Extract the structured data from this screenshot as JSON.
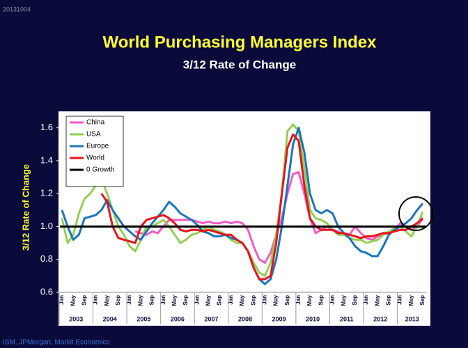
{
  "chart_data": {
    "type": "line",
    "stamp": "20131004",
    "title": "World Purchasing Managers Index",
    "subtitle": "3/12 Rate of Change",
    "y_label": "3/12 Rate of Change",
    "source": "ISM, JPMorgan, Markit Economics",
    "categories": [
      "Jan",
      null,
      "May",
      null,
      "Sep",
      null,
      "Jan",
      null,
      "May",
      null,
      "Sep",
      null,
      "Jan",
      null,
      "May",
      null,
      "Sep",
      null,
      "Jan",
      null,
      "May",
      null,
      "Sep",
      null,
      "Jan",
      null,
      "May",
      null,
      "Sep",
      null,
      "Jan",
      null,
      "May",
      null,
      "Sep",
      null,
      "Jan",
      null,
      "May",
      null,
      "Sep",
      null,
      "Jan",
      null,
      "May",
      null,
      "Sep",
      null,
      "Jan",
      null,
      "May",
      null,
      "Sep",
      null,
      "Jan",
      null,
      "May",
      null,
      "Sep",
      null,
      "Jan",
      null,
      "May",
      null,
      "Sep"
    ],
    "year_labels": [
      "2003",
      "2004",
      "2005",
      "2006",
      "2007",
      "2008",
      "2009",
      "2010",
      "2011",
      "2012",
      "2013"
    ],
    "ylim": [
      0.6,
      1.7
    ],
    "yticks": [
      0.6,
      0.8,
      {
        "value": 1.0,
        "label": "1.0"
      },
      1.2,
      1.4,
      1.6
    ],
    "series": [
      {
        "name": "China",
        "color": "#f25ac8",
        "values": [
          null,
          null,
          null,
          null,
          null,
          null,
          null,
          null,
          null,
          null,
          null,
          null,
          null,
          0.97,
          0.96,
          0.95,
          0.97,
          0.96,
          1.0,
          1.04,
          1.04,
          1.04,
          1.04,
          1.04,
          1.03,
          1.02,
          1.03,
          1.02,
          1.02,
          1.03,
          1.02,
          1.03,
          1.02,
          0.98,
          0.88,
          0.8,
          0.78,
          0.84,
          0.95,
          1.05,
          1.2,
          1.32,
          1.33,
          1.2,
          1.05,
          0.96,
          0.98,
          1.0,
          0.98,
          0.97,
          0.95,
          0.95,
          1.0,
          0.96,
          0.93,
          0.92,
          0.94,
          0.95,
          0.96,
          0.98,
          1.02,
          1.0,
          0.98,
          1.0,
          1.05
        ]
      },
      {
        "name": "USA",
        "color": "#92d050",
        "values": [
          1.05,
          0.9,
          0.95,
          1.08,
          1.17,
          1.2,
          1.25,
          1.29,
          1.2,
          1.1,
          1.0,
          0.95,
          0.88,
          0.85,
          0.92,
          1.0,
          1.0,
          1.02,
          1.04,
          1.0,
          0.95,
          0.9,
          0.92,
          0.95,
          0.96,
          0.98,
          1.0,
          0.98,
          0.97,
          0.95,
          0.92,
          0.9,
          0.9,
          0.85,
          0.78,
          0.72,
          0.7,
          0.78,
          0.95,
          1.2,
          1.58,
          1.62,
          1.58,
          1.35,
          1.1,
          1.05,
          1.04,
          1.02,
          0.98,
          0.95,
          0.95,
          0.93,
          0.92,
          0.92,
          0.9,
          0.91,
          0.92,
          0.95,
          0.97,
          0.99,
          1.0,
          0.97,
          0.94,
          1.0,
          1.09
        ]
      },
      {
        "name": "Europe",
        "color": "#1a75bb",
        "values": [
          1.1,
          1.0,
          0.92,
          0.95,
          1.05,
          1.06,
          1.07,
          1.1,
          1.16,
          1.1,
          1.05,
          1.0,
          0.97,
          0.94,
          0.92,
          0.97,
          1.02,
          1.06,
          1.1,
          1.15,
          1.12,
          1.08,
          1.06,
          1.04,
          1.01,
          0.97,
          0.96,
          0.94,
          0.94,
          0.95,
          0.93,
          0.92,
          0.9,
          0.85,
          0.75,
          0.68,
          0.65,
          0.68,
          0.8,
          1.0,
          1.25,
          1.5,
          1.6,
          1.45,
          1.2,
          1.1,
          1.08,
          1.1,
          1.08,
          1.0,
          0.96,
          0.93,
          0.88,
          0.85,
          0.84,
          0.82,
          0.82,
          0.88,
          0.95,
          0.98,
          1.0,
          1.02,
          1.05,
          1.1,
          1.14
        ]
      },
      {
        "name": "World",
        "color": "#e8141c",
        "values": [
          null,
          null,
          null,
          null,
          null,
          null,
          null,
          1.2,
          1.15,
          1.0,
          0.93,
          0.92,
          0.91,
          0.9,
          1.0,
          1.04,
          1.05,
          1.06,
          1.07,
          1.05,
          1.02,
          0.98,
          0.97,
          0.98,
          0.98,
          0.97,
          0.98,
          0.97,
          0.96,
          0.95,
          0.95,
          0.92,
          0.9,
          0.85,
          0.75,
          0.68,
          0.68,
          0.7,
          0.9,
          1.2,
          1.48,
          1.56,
          1.52,
          1.25,
          1.05,
          1.0,
          0.98,
          0.98,
          0.98,
          0.96,
          0.96,
          0.95,
          0.94,
          0.93,
          0.94,
          0.94,
          0.95,
          0.96,
          0.96,
          0.97,
          0.98,
          0.98,
          1.0,
          1.02,
          1.05
        ]
      }
    ],
    "reference_line": {
      "name": "0 Growth",
      "value": 1.0,
      "color": "#000000"
    }
  }
}
